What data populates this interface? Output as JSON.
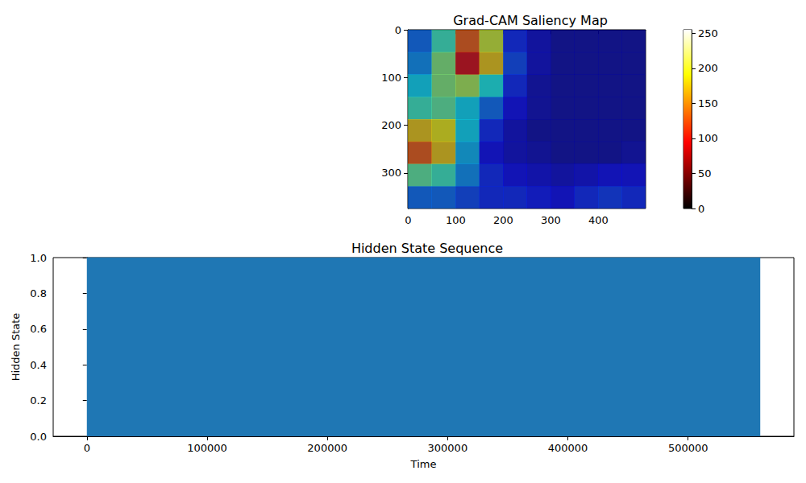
{
  "chart_data": [
    {
      "type": "heatmap",
      "title": "Grad-CAM Saliency Map",
      "xlim": [
        -0.5,
        499.5
      ],
      "ylim": [
        374.5,
        -0.5
      ],
      "xticks": [
        0,
        100,
        200,
        300,
        400
      ],
      "yticks": [
        0,
        100,
        200,
        300
      ],
      "cells": [
        [
          60,
          110,
          200,
          150,
          40,
          20,
          10,
          10,
          10,
          10
        ],
        [
          70,
          130,
          230,
          170,
          50,
          20,
          10,
          10,
          10,
          10
        ],
        [
          90,
          130,
          140,
          100,
          40,
          15,
          10,
          10,
          10,
          10
        ],
        [
          110,
          120,
          90,
          60,
          30,
          15,
          10,
          10,
          10,
          10
        ],
        [
          170,
          160,
          90,
          40,
          20,
          10,
          10,
          10,
          10,
          10
        ],
        [
          200,
          170,
          80,
          30,
          20,
          15,
          10,
          10,
          10,
          15
        ],
        [
          120,
          110,
          70,
          40,
          30,
          25,
          20,
          25,
          30,
          30
        ],
        [
          60,
          60,
          50,
          40,
          40,
          35,
          30,
          40,
          45,
          40
        ]
      ],
      "colorbar_range": [
        0,
        255
      ],
      "colorbar_ticks": [
        0,
        50,
        100,
        150,
        200,
        250
      ]
    },
    {
      "type": "area",
      "title": "Hidden State Sequence",
      "xlabel": "Time",
      "ylabel": "Hidden State",
      "x": [
        0,
        560000
      ],
      "values": [
        1,
        1
      ],
      "color": "#1f77b4",
      "xlim": [
        -28000,
        588000
      ],
      "ylim": [
        0,
        1
      ],
      "xticks": [
        0,
        100000,
        200000,
        300000,
        400000,
        500000
      ],
      "yticks": [
        {
          "value": 0,
          "label": "0.0"
        },
        {
          "value": 0.2,
          "label": "0.2"
        },
        {
          "value": 0.4,
          "label": "0.4"
        },
        {
          "value": 0.6,
          "label": "0.6"
        },
        {
          "value": 0.8,
          "label": "0.8"
        },
        {
          "value": 1,
          "label": "1.0"
        }
      ]
    }
  ]
}
